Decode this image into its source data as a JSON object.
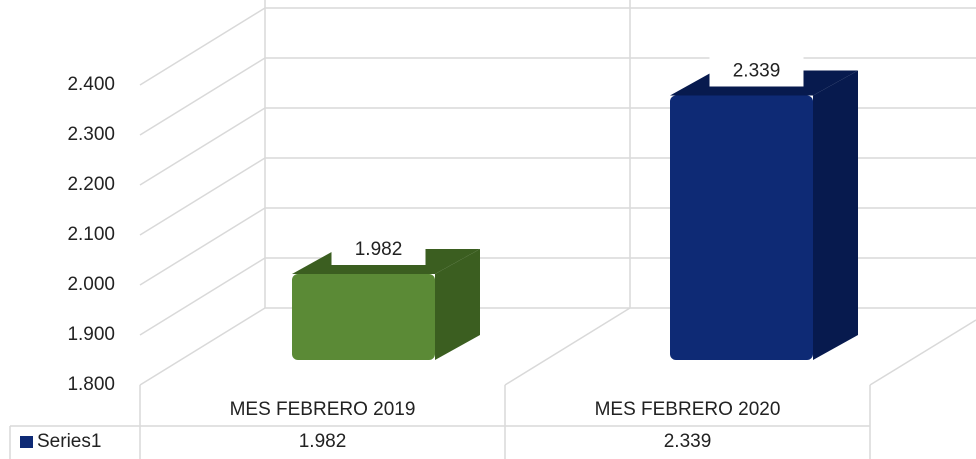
{
  "chart_data": {
    "type": "bar3d",
    "categories": [
      "MES FEBRERO 2019",
      "MES FEBRERO 2020"
    ],
    "series": [
      {
        "name": "Series1",
        "colors": [
          "#5b8a36",
          "#0e2a75"
        ],
        "side_colors": [
          "#3b5e20",
          "#071a4e"
        ],
        "values": [
          1982,
          2339
        ],
        "value_labels": [
          "1.982",
          "2.339"
        ]
      }
    ],
    "ylim": [
      1800,
      2400
    ],
    "yticks": [
      {
        "value": 1800,
        "label": "1.800"
      },
      {
        "value": 1900,
        "label": "1.900"
      },
      {
        "value": 2000,
        "label": "2.000"
      },
      {
        "value": 2100,
        "label": "2.100"
      },
      {
        "value": 2200,
        "label": "2.200"
      },
      {
        "value": 2300,
        "label": "2.300"
      },
      {
        "value": 2400,
        "label": "2.400"
      }
    ],
    "grid": true,
    "data_table": true
  }
}
